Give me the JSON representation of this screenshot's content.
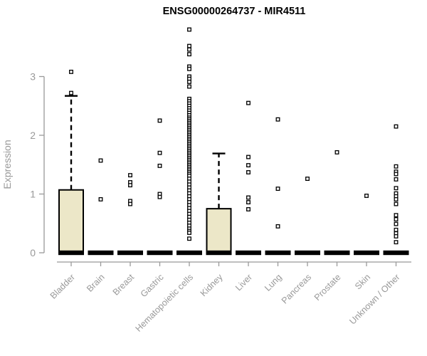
{
  "chart_data": {
    "type": "boxplot",
    "title": "ENSG00000264737 - MIR4511",
    "ylabel": "Expression",
    "xlabel": "",
    "yticks": [
      0,
      1,
      2,
      3
    ],
    "ylim": [
      0,
      3.9
    ],
    "grid": false,
    "legend": "none",
    "categories": [
      "Bladder",
      "Brain",
      "Breast",
      "Gastric",
      "Hematopoietic cells",
      "Kidney",
      "Liver",
      "Lung",
      "Pancreas",
      "Prostate",
      "Skin",
      "Unknown / Other"
    ],
    "series": [
      {
        "category": "Bladder",
        "q1": 0,
        "median": 0,
        "q3": 1.07,
        "whisker_low": 0,
        "whisker_high": 2.67,
        "outliers": [
          3.08,
          2.72
        ]
      },
      {
        "category": "Brain",
        "q1": 0,
        "median": 0,
        "q3": 0,
        "whisker_low": 0,
        "whisker_high": 0,
        "outliers": [
          1.57,
          0.91
        ]
      },
      {
        "category": "Breast",
        "q1": 0,
        "median": 0,
        "q3": 0,
        "whisker_low": 0,
        "whisker_high": 0,
        "outliers": [
          1.32,
          1.2,
          1.15,
          0.88,
          0.83
        ]
      },
      {
        "category": "Gastric",
        "q1": 0,
        "median": 0,
        "q3": 0,
        "whisker_low": 0,
        "whisker_high": 0,
        "outliers": [
          2.25,
          1.7,
          1.48,
          1.0,
          0.95
        ]
      },
      {
        "category": "Hematopoietic cells",
        "q1": 0,
        "median": 0,
        "q3": 0,
        "whisker_low": 0,
        "whisker_high": 0,
        "outliers": [
          3.8,
          3.52,
          3.46,
          3.38,
          3.17,
          3.13,
          3.0,
          2.96,
          2.91,
          2.83,
          2.62,
          2.58,
          2.54,
          2.5,
          2.46,
          2.42,
          2.38,
          2.34,
          2.3,
          2.27,
          2.24,
          2.21,
          2.18,
          2.15,
          2.12,
          2.09,
          2.06,
          2.03,
          2.0,
          1.97,
          1.94,
          1.91,
          1.88,
          1.85,
          1.82,
          1.79,
          1.76,
          1.73,
          1.7,
          1.67,
          1.64,
          1.61,
          1.58,
          1.55,
          1.52,
          1.49,
          1.46,
          1.43,
          1.4,
          1.37,
          1.34,
          1.31,
          1.26,
          1.21,
          1.16,
          1.11,
          1.06,
          1.01,
          0.96,
          0.91,
          0.86,
          0.81,
          0.76,
          0.71,
          0.66,
          0.61,
          0.56,
          0.51,
          0.46,
          0.41,
          0.37,
          0.34,
          0.24
        ]
      },
      {
        "category": "Kidney",
        "q1": 0,
        "median": 0,
        "q3": 0.75,
        "whisker_low": 0,
        "whisker_high": 1.69,
        "outliers": []
      },
      {
        "category": "Liver",
        "q1": 0,
        "median": 0,
        "q3": 0,
        "whisker_low": 0,
        "whisker_high": 0,
        "outliers": [
          2.55,
          1.63,
          1.49,
          1.37,
          0.94,
          0.86,
          0.74
        ]
      },
      {
        "category": "Lung",
        "q1": 0,
        "median": 0,
        "q3": 0,
        "whisker_low": 0,
        "whisker_high": 0,
        "outliers": [
          2.27,
          1.09,
          0.45
        ]
      },
      {
        "category": "Pancreas",
        "q1": 0,
        "median": 0,
        "q3": 0,
        "whisker_low": 0,
        "whisker_high": 0,
        "outliers": [
          1.26
        ]
      },
      {
        "category": "Prostate",
        "q1": 0,
        "median": 0,
        "q3": 0,
        "whisker_low": 0,
        "whisker_high": 0,
        "outliers": [
          1.71
        ]
      },
      {
        "category": "Skin",
        "q1": 0,
        "median": 0,
        "q3": 0,
        "whisker_low": 0,
        "whisker_high": 0,
        "outliers": [
          0.97
        ]
      },
      {
        "category": "Unknown / Other",
        "q1": 0,
        "median": 0,
        "q3": 0,
        "whisker_low": 0,
        "whisker_high": 0,
        "outliers": [
          2.15,
          1.47,
          1.38,
          1.34,
          1.25,
          1.1,
          1.01,
          0.96,
          0.91,
          0.83,
          0.64,
          0.57,
          0.49,
          0.39,
          0.33,
          0.28,
          0.18
        ]
      }
    ],
    "colors": {
      "box_fill": "#ece7c8",
      "box_border": "#000000",
      "median": "#000000",
      "whisker": "#000000",
      "outlier_stroke": "#000000",
      "outlier_fill": "#ffffff",
      "axis": "#999999",
      "text": "#999999",
      "title": "#000000"
    }
  }
}
